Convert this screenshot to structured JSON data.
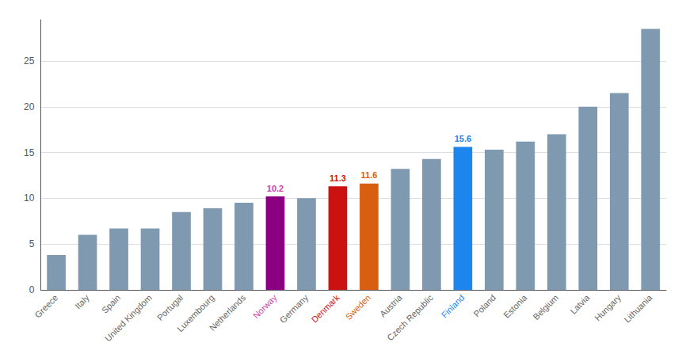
{
  "chart_data": {
    "type": "bar",
    "categories": [
      "Greece",
      "Italy",
      "Spain",
      "United Kingdom",
      "Portugal",
      "Luxembourg",
      "Netherlands",
      "Norway",
      "Germany",
      "Denmark",
      "Sweden",
      "Austria",
      "Czech Republic",
      "Finland",
      "Poland",
      "Estonia",
      "Belgium",
      "Latvia",
      "Hungary",
      "Lithuania"
    ],
    "values": [
      3.8,
      6.0,
      6.7,
      6.7,
      8.5,
      8.9,
      9.5,
      10.2,
      10.0,
      11.3,
      11.6,
      13.2,
      14.3,
      15.6,
      15.3,
      16.2,
      17.0,
      20.0,
      21.5,
      28.5
    ],
    "colors": [
      "#7f9ab0",
      "#7f9ab0",
      "#7f9ab0",
      "#7f9ab0",
      "#7f9ab0",
      "#7f9ab0",
      "#7f9ab0",
      "#8b0080",
      "#7f9ab0",
      "#cc1111",
      "#d95f10",
      "#7f9ab0",
      "#7f9ab0",
      "#1c86ee",
      "#7f9ab0",
      "#7f9ab0",
      "#7f9ab0",
      "#7f9ab0",
      "#7f9ab0",
      "#7f9ab0"
    ],
    "annotations": [
      {
        "category": "Norway",
        "text": "10.2",
        "color": "#cc44aa"
      },
      {
        "category": "Denmark",
        "text": "11.3",
        "color": "#cc1111"
      },
      {
        "category": "Sweden",
        "text": "11.6",
        "color": "#d95f10"
      },
      {
        "category": "Finland",
        "text": "15.6",
        "color": "#1c86ee"
      }
    ],
    "ylim": [
      0,
      29.5
    ],
    "yticks": [
      0,
      5,
      10,
      15,
      20,
      25
    ],
    "grid": true
  }
}
